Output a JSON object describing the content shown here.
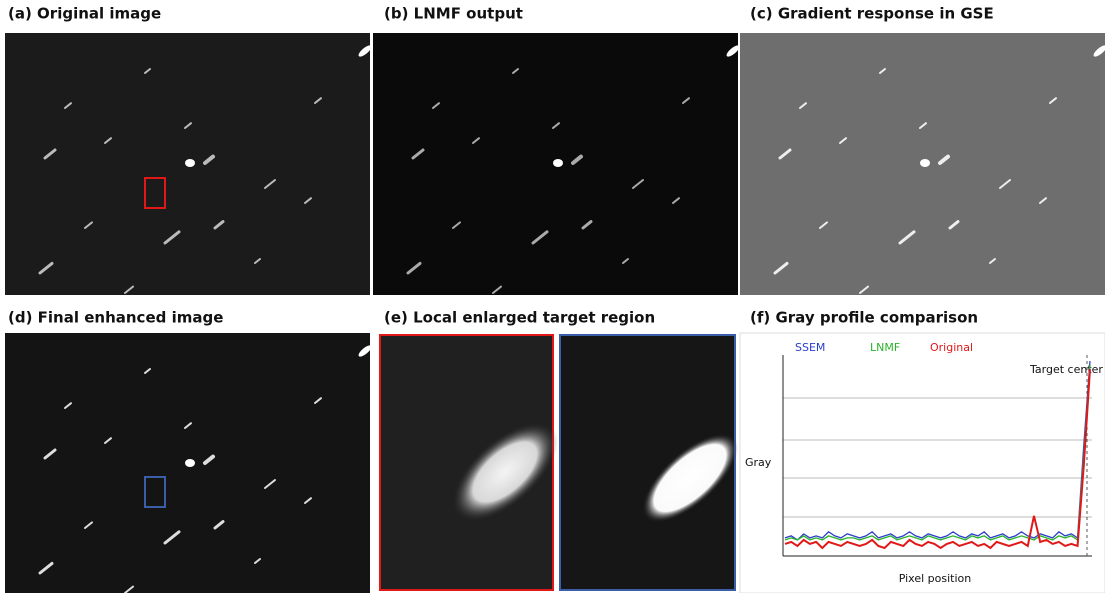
{
  "panels": [
    {
      "label": "(a) Original image"
    },
    {
      "label": "(b) LNMF output"
    },
    {
      "label": "(c) Gradient response in GSE"
    },
    {
      "label": "(d) Final enhanced image"
    },
    {
      "label": "(e) Local enlarged target region"
    },
    {
      "label": "(f) Gray profile comparison"
    }
  ],
  "chart_data": {
    "type": "line",
    "x_label": "Pixel position",
    "y_label": "Gray",
    "annotation": "Target center",
    "ylim": [
      0,
      100
    ],
    "series": [
      {
        "name": "SSEM",
        "color": "#2a3fc8",
        "values": [
          9,
          10,
          8,
          11,
          9,
          10,
          9,
          12,
          10,
          9,
          11,
          10,
          9,
          10,
          12,
          9,
          10,
          11,
          9,
          10,
          12,
          10,
          9,
          11,
          10,
          9,
          10,
          12,
          10,
          9,
          11,
          10,
          12,
          9,
          10,
          11,
          9,
          10,
          12,
          10,
          9,
          11,
          10,
          9,
          12,
          10,
          11,
          9,
          55,
          97
        ]
      },
      {
        "name": "LNMF",
        "color": "#2bb32b",
        "values": [
          8,
          9,
          8,
          10,
          8,
          9,
          8,
          10,
          9,
          8,
          9,
          9,
          8,
          9,
          10,
          8,
          9,
          10,
          8,
          9,
          10,
          9,
          8,
          10,
          9,
          8,
          9,
          10,
          9,
          8,
          10,
          9,
          10,
          8,
          9,
          10,
          8,
          9,
          10,
          9,
          8,
          10,
          9,
          8,
          10,
          9,
          10,
          8,
          50,
          95
        ]
      },
      {
        "name": "Original",
        "color": "#e01818",
        "values": [
          6,
          7,
          5,
          8,
          6,
          7,
          4,
          7,
          6,
          5,
          7,
          6,
          5,
          6,
          8,
          5,
          4,
          7,
          6,
          5,
          8,
          6,
          5,
          7,
          6,
          4,
          6,
          7,
          5,
          6,
          7,
          5,
          6,
          4,
          7,
          6,
          5,
          6,
          7,
          5,
          20,
          7,
          8,
          6,
          7,
          5,
          6,
          5,
          45,
          93
        ]
      }
    ]
  }
}
